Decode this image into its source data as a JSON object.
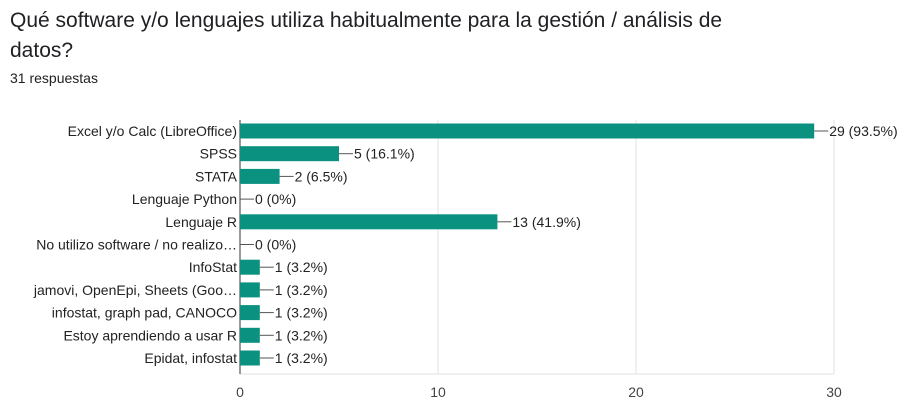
{
  "header": {
    "title": "Qué software y/o lenguajes utiliza habitualmente para la gestión / análisis de datos?",
    "responses": "31 respuestas"
  },
  "colors": {
    "bar": "#0a9180",
    "grid": "#e0e0e0",
    "axis": "#333333"
  },
  "chart_data": {
    "type": "bar",
    "orientation": "horizontal",
    "categories": [
      "Excel y/o Calc (LibreOffice)",
      "SPSS",
      "STATA",
      "Lenguaje Python",
      "Lenguaje R",
      "No utilizo software / no realizo…",
      "InfoStat",
      "jamovi, OpenEpi, Sheets (Goo…",
      "infostat, graph pad, CANOCO",
      "Estoy aprendiendo a usar R",
      "Epidat, infostat"
    ],
    "values": [
      29,
      5,
      2,
      0,
      13,
      0,
      1,
      1,
      1,
      1,
      1
    ],
    "data_labels": [
      "29 (93.5%)",
      "5 (16.1%)",
      "2 (6.5%)",
      "0 (0%)",
      "13 (41.9%)",
      "0 (0%)",
      "1 (3.2%)",
      "1 (3.2%)",
      "1 (3.2%)",
      "1 (3.2%)",
      "1 (3.2%)"
    ],
    "xlim": [
      0,
      30
    ],
    "xticks": [
      0,
      10,
      20,
      30
    ],
    "grid": true
  }
}
